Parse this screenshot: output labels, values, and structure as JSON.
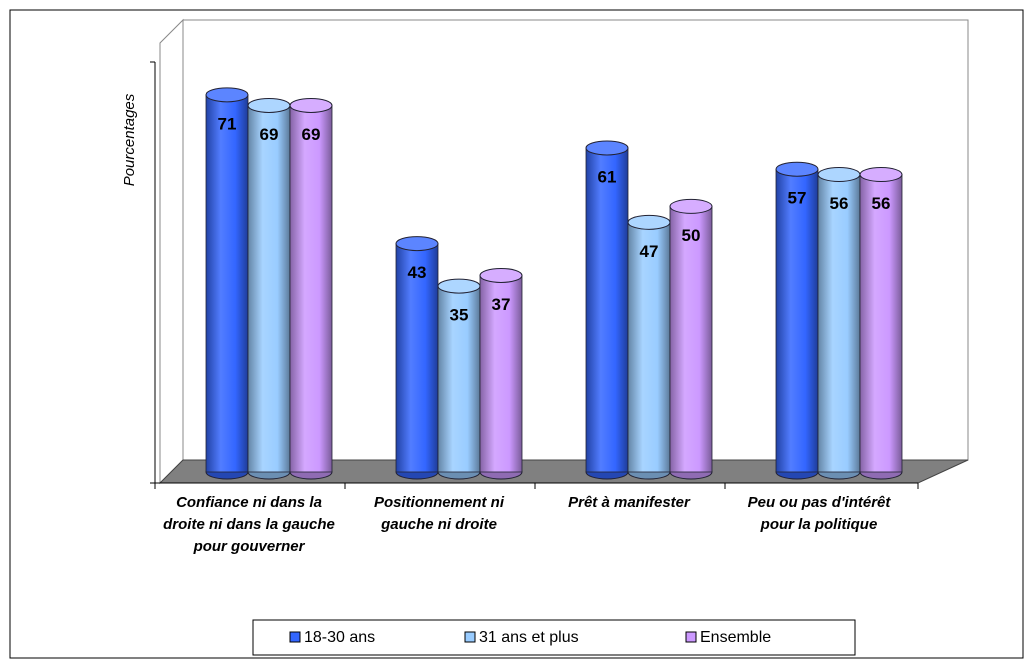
{
  "chart_data": {
    "type": "bar",
    "y_label": "Pourcentages",
    "categories": [
      "Confiance ni dans la droite ni dans la gauche pour gouverner",
      "Positionnement ni gauche ni droite",
      "Prêt à manifester",
      "Peu ou pas d'intérêt pour la politique"
    ],
    "series": [
      {
        "name": "18-30 ans",
        "color": "#3366ff",
        "values": [
          71,
          43,
          61,
          57
        ]
      },
      {
        "name": "31 ans et plus",
        "color": "#99ccff",
        "values": [
          69,
          35,
          47,
          56
        ]
      },
      {
        "name": "Ensemble",
        "color": "#cc99ff",
        "values": [
          69,
          37,
          50,
          56
        ]
      }
    ],
    "ylim": [
      0,
      80
    ]
  }
}
